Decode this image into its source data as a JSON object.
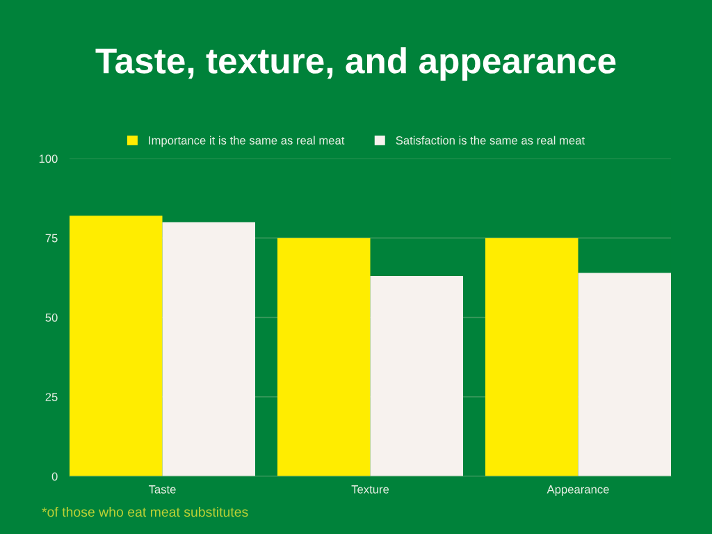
{
  "chart_data": {
    "type": "bar",
    "title": "Taste, texture, and appearance",
    "categories": [
      "Taste",
      "Texture",
      "Appearance"
    ],
    "series": [
      {
        "name": "Importance it is the same as real meat",
        "color": "#ffed00",
        "values": [
          82,
          75,
          75
        ]
      },
      {
        "name": "Satisfaction is the same as real meat",
        "color": "#f7f2ee",
        "values": [
          80,
          63,
          64
        ]
      }
    ],
    "ylim": [
      0,
      100
    ],
    "yticks": [
      0,
      25,
      50,
      75,
      100
    ],
    "grid": "y",
    "legend": "top",
    "annotations": [
      "*of those who eat meat substitutes"
    ]
  }
}
